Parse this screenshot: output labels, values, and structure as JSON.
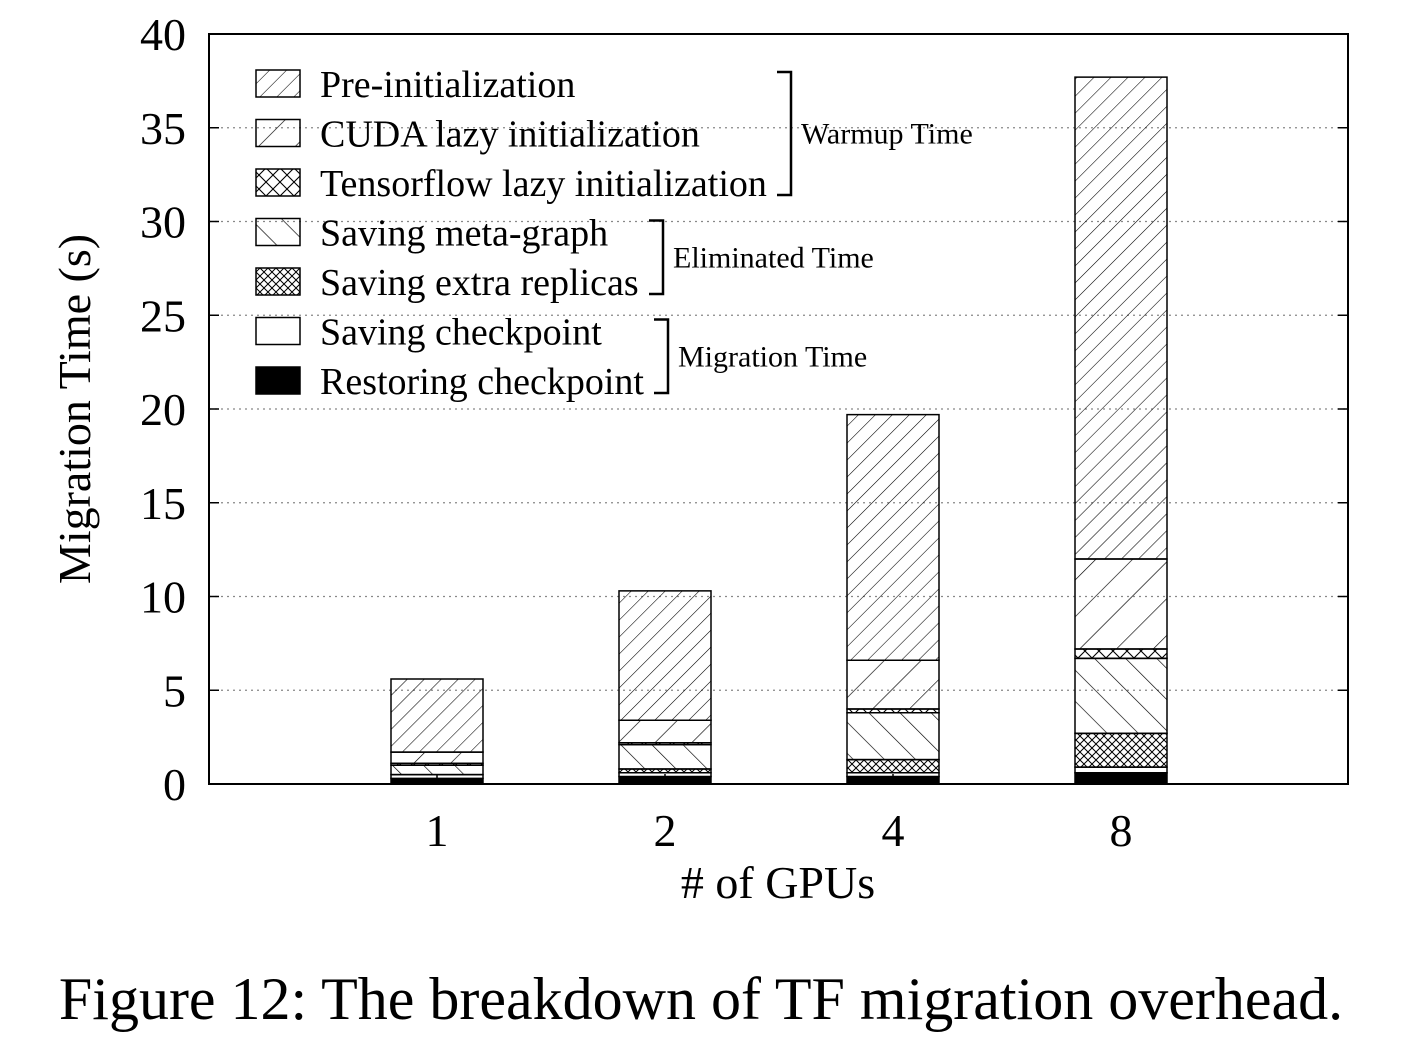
{
  "caption": "Figure 12: The breakdown of TF migration overhead.",
  "chart_data": {
    "type": "bar",
    "stacked": true,
    "xlabel": "# of GPUs",
    "ylabel": "Migration Time (s)",
    "ylim": [
      0,
      40
    ],
    "yticks": [
      0,
      5,
      10,
      15,
      20,
      25,
      30,
      35,
      40
    ],
    "grid": "horizontal-dotted",
    "legend_position": "top-left",
    "categories": [
      "1",
      "2",
      "4",
      "8"
    ],
    "series": [
      {
        "name": "Restoring checkpoint",
        "pattern": "solid-black",
        "values": [
          0.3,
          0.4,
          0.4,
          0.6
        ]
      },
      {
        "name": "Saving checkpoint",
        "pattern": "empty",
        "values": [
          0.2,
          0.2,
          0.2,
          0.3
        ]
      },
      {
        "name": "Saving extra replicas",
        "pattern": "crosshatch-dense",
        "values": [
          0.0,
          0.2,
          0.7,
          1.8
        ]
      },
      {
        "name": "Saving meta-graph",
        "pattern": "back-diagonal",
        "values": [
          0.5,
          1.3,
          2.5,
          4.0
        ]
      },
      {
        "name": "Tensorflow lazy initialization",
        "pattern": "crosshatch",
        "values": [
          0.1,
          0.1,
          0.2,
          0.5
        ]
      },
      {
        "name": "CUDA lazy initialization",
        "pattern": "diagonal-sparse",
        "values": [
          0.6,
          1.2,
          2.6,
          4.8
        ]
      },
      {
        "name": "Pre-initialization",
        "pattern": "diagonal-dense",
        "values": [
          3.9,
          6.9,
          13.1,
          25.7
        ]
      }
    ],
    "legend_order": [
      "Pre-initialization",
      "CUDA lazy initialization",
      "Tensorflow lazy initialization",
      "Saving meta-graph",
      "Saving extra replicas",
      "Saving checkpoint",
      "Restoring checkpoint"
    ],
    "groups": [
      {
        "label": "Warmup Time",
        "members": [
          "Pre-initialization",
          "CUDA lazy initialization",
          "Tensorflow lazy initialization"
        ]
      },
      {
        "label": "Eliminated Time",
        "members": [
          "Saving meta-graph",
          "Saving extra replicas"
        ]
      },
      {
        "label": "Migration Time",
        "members": [
          "Saving checkpoint",
          "Restoring checkpoint"
        ]
      }
    ]
  }
}
